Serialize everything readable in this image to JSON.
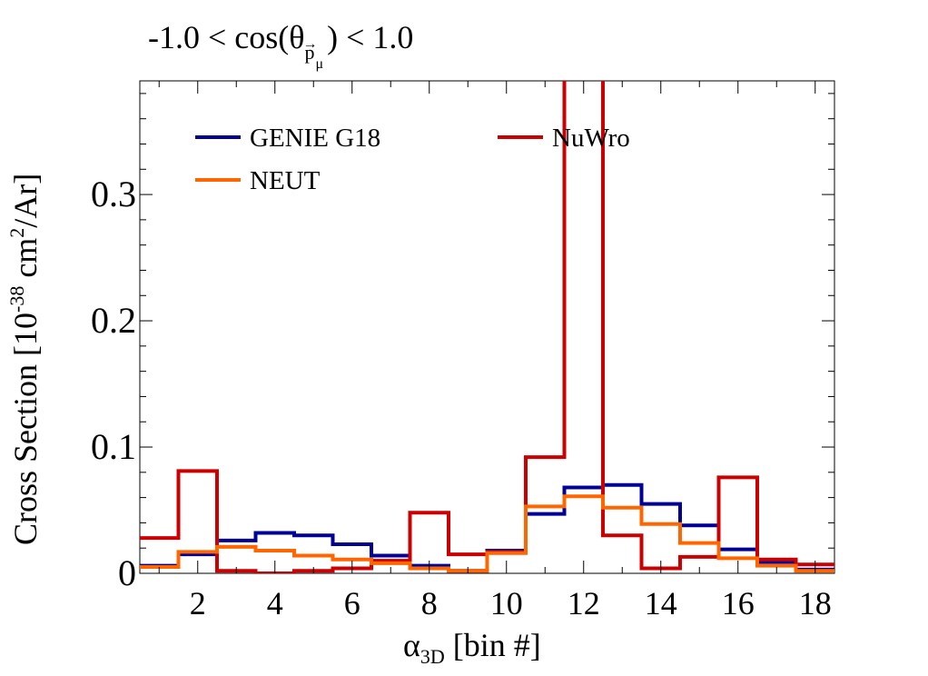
{
  "chart_data": {
    "type": "line",
    "title_parts": {
      "prefix": "-1.0 < cos(θ",
      "subscript": "p",
      "vector_arrow": "→",
      "sub_subscript": "μ",
      "suffix": ") < 1.0"
    },
    "xlabel_parts": {
      "main": "α",
      "subscript": "3D",
      "suffix": " [bin #]"
    },
    "ylabel_parts": {
      "prefix": "Cross Section [10",
      "exp1": "-38",
      "mid": " cm",
      "exp2": "2",
      "suffix": "/Ar]"
    },
    "xlim": [
      0.5,
      18.5
    ],
    "ylim": [
      0,
      0.39
    ],
    "x_ticks": [
      "2",
      "4",
      "6",
      "8",
      "10",
      "12",
      "14",
      "16",
      "18"
    ],
    "x_tick_values": [
      2,
      4,
      6,
      8,
      10,
      12,
      14,
      16,
      18
    ],
    "y_ticks": [
      "0",
      "0.1",
      "0.2",
      "0.3"
    ],
    "y_tick_values": [
      0,
      0.1,
      0.2,
      0.3
    ],
    "bins": [
      1,
      2,
      3,
      4,
      5,
      6,
      7,
      8,
      9,
      10,
      11,
      12,
      13,
      14,
      15,
      16,
      17,
      18
    ],
    "grid": false,
    "legend_placement": "top",
    "series": [
      {
        "name": "GENIE G18",
        "color": "#000099",
        "values": [
          0.006,
          0.015,
          0.026,
          0.032,
          0.03,
          0.023,
          0.014,
          0.006,
          0.002,
          0.018,
          0.047,
          0.068,
          0.07,
          0.055,
          0.038,
          0.019,
          0.009,
          0.003
        ]
      },
      {
        "name": "NuWro",
        "color": "#cc0000",
        "values": [
          0.028,
          0.081,
          0.002,
          0.0,
          0.002,
          0.004,
          0.01,
          0.048,
          0.015,
          0.017,
          0.092,
          0.4,
          0.03,
          0.004,
          0.013,
          0.076,
          0.011,
          0.007
        ]
      },
      {
        "name": "NEUT",
        "color": "#ff6600",
        "values": [
          0.005,
          0.017,
          0.021,
          0.018,
          0.014,
          0.011,
          0.008,
          0.004,
          0.002,
          0.016,
          0.053,
          0.061,
          0.052,
          0.039,
          0.024,
          0.012,
          0.006,
          0.002
        ]
      }
    ]
  }
}
